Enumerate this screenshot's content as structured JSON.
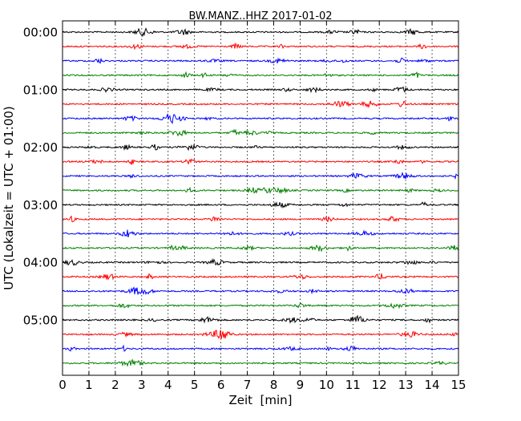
{
  "chart_data": {
    "type": "line",
    "title": "BW.MANZ..HHZ 2017-01-02",
    "xlabel": "Zeit  [min]",
    "ylabel": "UTC (Lokalzeit = UTC + 01:00)",
    "xlim": [
      0,
      15
    ],
    "x_ticks": [
      0,
      1,
      2,
      3,
      4,
      5,
      6,
      7,
      8,
      9,
      10,
      11,
      12,
      13,
      14,
      15
    ],
    "x_tick_labels": [
      "0",
      "1",
      "2",
      "3",
      "4",
      "5",
      "6",
      "7",
      "8",
      "9",
      "10",
      "11",
      "12",
      "13",
      "14",
      "15"
    ],
    "y_tick_labels": [
      "00:00",
      "01:00",
      "02:00",
      "03:00",
      "04:00",
      "05:00"
    ],
    "traces_per_hour": 4,
    "trace_count": 24,
    "trace_colors": [
      "#000000",
      "#ff0000",
      "#0000ff",
      "#008000"
    ],
    "vertical_grid": "dotted",
    "series": [
      {
        "start": "00:00"
      },
      {
        "start": "00:15"
      },
      {
        "start": "00:30"
      },
      {
        "start": "00:45"
      },
      {
        "start": "01:00"
      },
      {
        "start": "01:15"
      },
      {
        "start": "01:30"
      },
      {
        "start": "01:45"
      },
      {
        "start": "02:00"
      },
      {
        "start": "02:15"
      },
      {
        "start": "02:30"
      },
      {
        "start": "02:45"
      },
      {
        "start": "03:00"
      },
      {
        "start": "03:15"
      },
      {
        "start": "03:30"
      },
      {
        "start": "03:45"
      },
      {
        "start": "04:00"
      },
      {
        "start": "04:15"
      },
      {
        "start": "04:30"
      },
      {
        "start": "04:45"
      },
      {
        "start": "05:00"
      },
      {
        "start": "05:15"
      },
      {
        "start": "05:30"
      },
      {
        "start": "05:45"
      }
    ]
  }
}
